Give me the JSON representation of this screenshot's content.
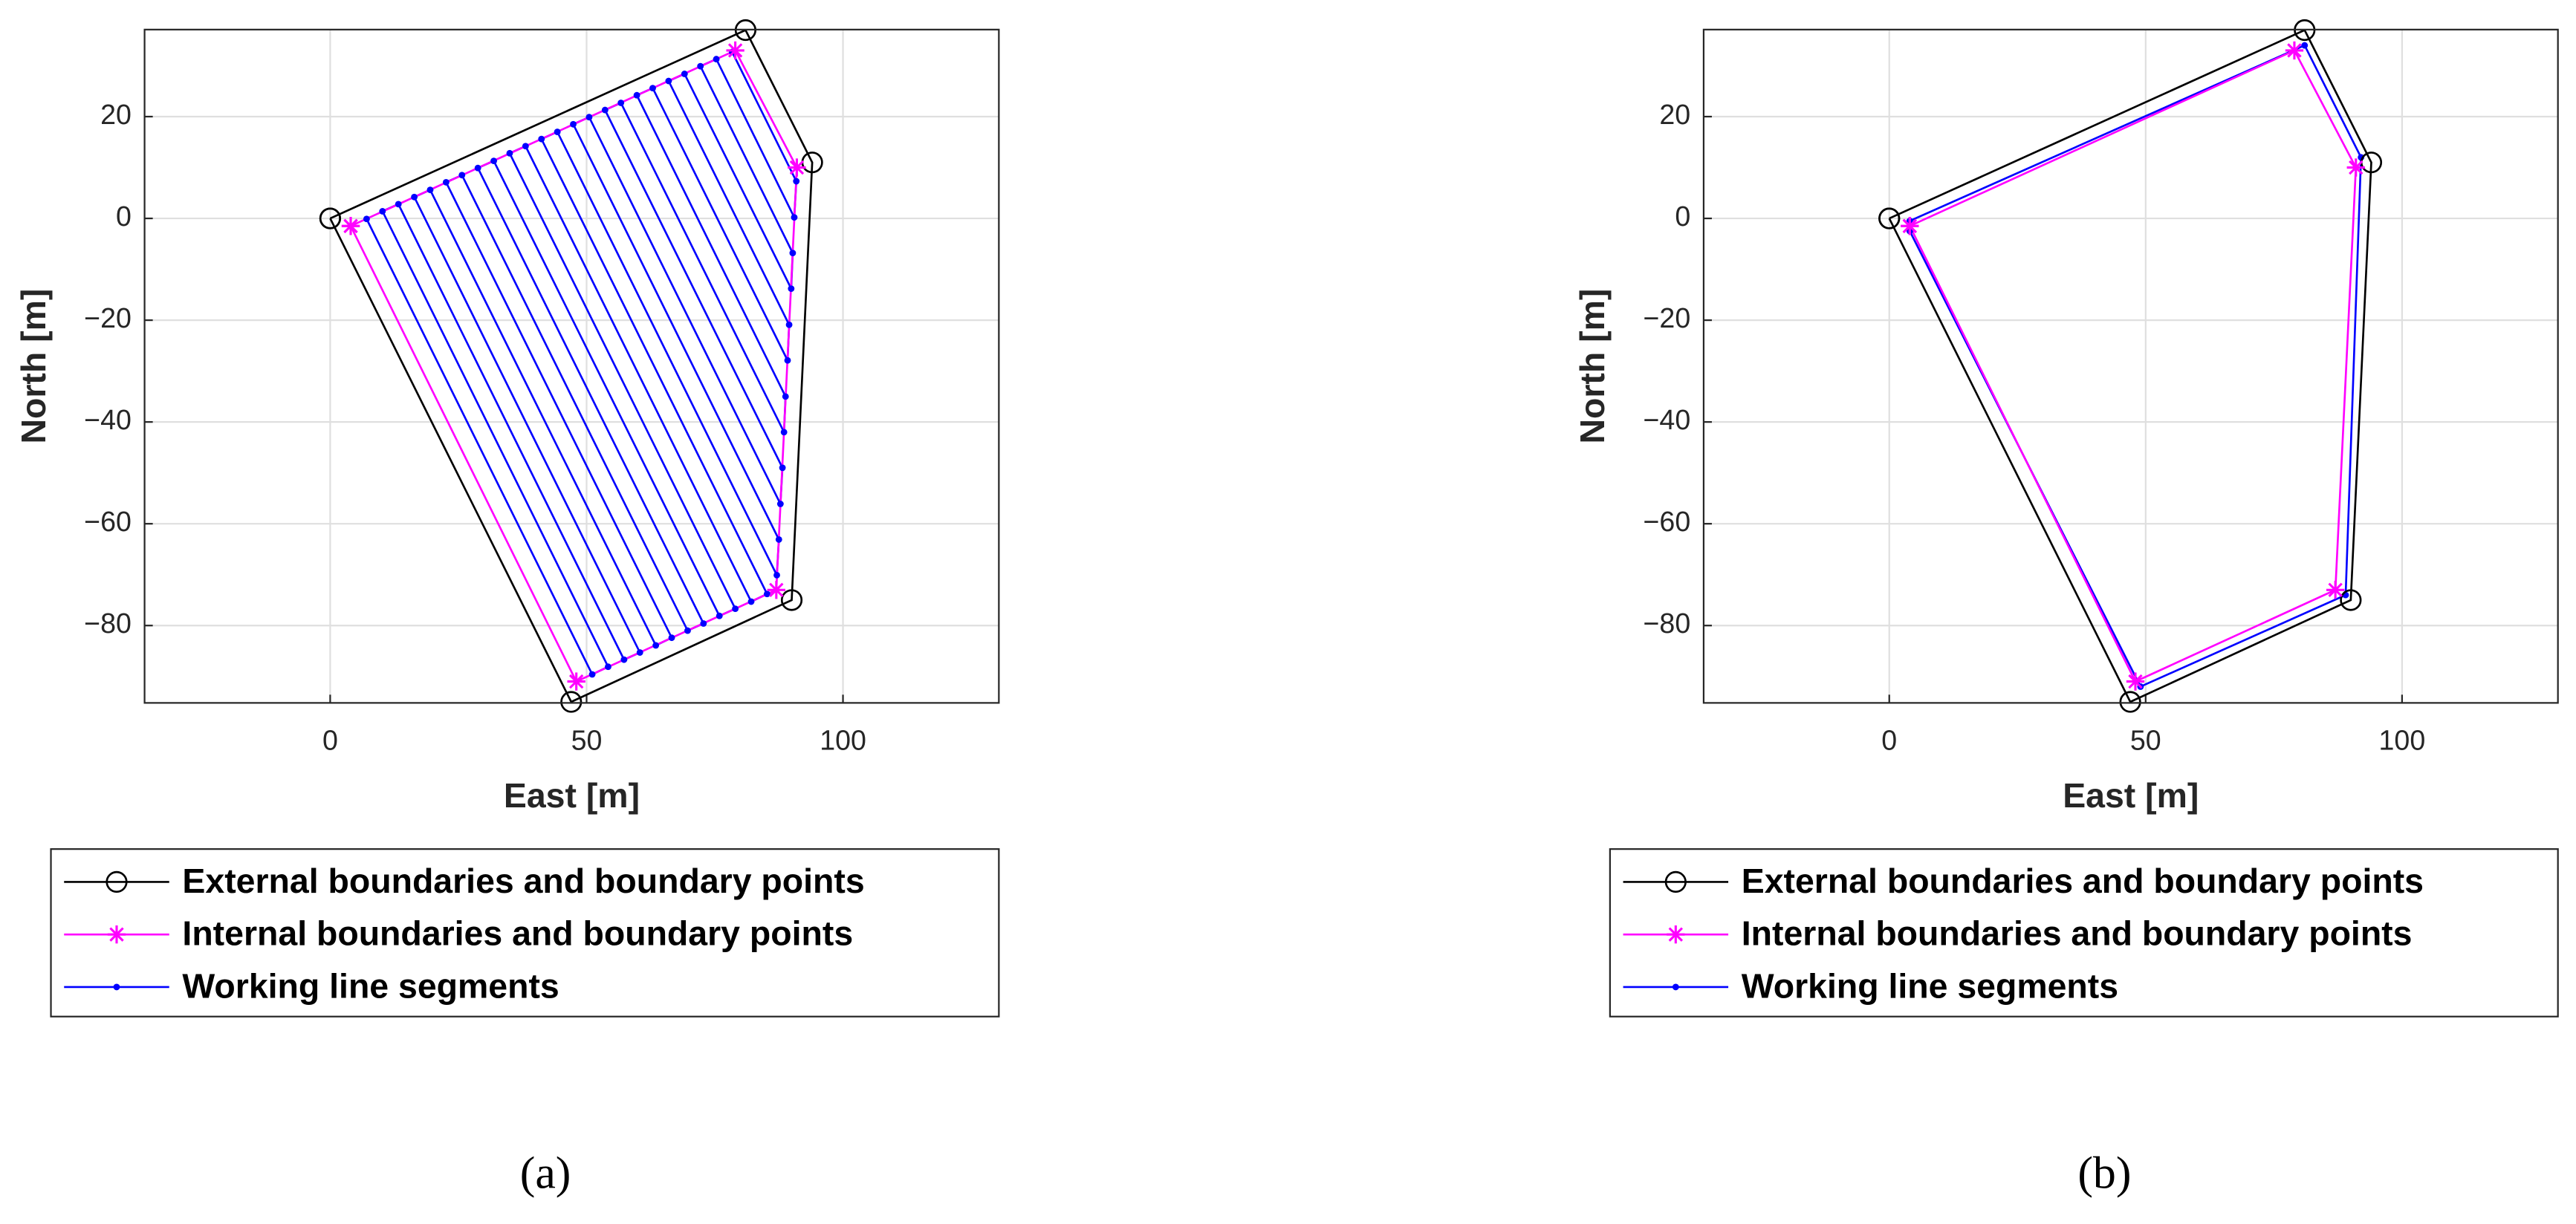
{
  "chart_data": [
    {
      "type": "line",
      "caption": "(a)",
      "xlabel": "East [m]",
      "ylabel": "North [m]",
      "xlim": [
        -36.2,
        130.4
      ],
      "ylim": [
        -95.2,
        37.1
      ],
      "xticks": [
        0,
        50,
        100
      ],
      "yticks": [
        {
          "value": -80,
          "label": "−80"
        },
        {
          "value": -60,
          "label": "−60"
        },
        {
          "value": -40,
          "label": "−40"
        },
        {
          "value": -20,
          "label": "−20"
        },
        0,
        20
      ],
      "grid": true,
      "legend_position": "bottom",
      "series": [
        {
          "name": "External boundaries and boundary points",
          "color": "#000000",
          "marker": "circle",
          "x": [
            0,
            81,
            94,
            90,
            47,
            0
          ],
          "y": [
            0,
            37,
            11,
            -75,
            -95,
            0
          ]
        },
        {
          "name": "Internal boundaries and boundary points",
          "color": "#ff00ff",
          "marker": "asterisk",
          "x": [
            4,
            79,
            91,
            87,
            48,
            4
          ],
          "y": [
            -1.5,
            33,
            10,
            -73,
            -91,
            -1.5
          ]
        },
        {
          "name": "Working line segments",
          "color": "#0000ff",
          "marker": "dot",
          "x": [
            7.1,
            51.1,
            54.2,
            10.2,
            13.3,
            57.3,
            60.4,
            16.4,
            19.5,
            63.5,
            66.6,
            22.6,
            25.7,
            69.7,
            72.8,
            28.8,
            31.9,
            75.9,
            79.0,
            35.0,
            38.1,
            82.1,
            85.2,
            41.2,
            44.3,
            87.1,
            87.5,
            47.4,
            50.5,
            87.8,
            88.2,
            53.6,
            56.7,
            88.5,
            88.8,
            59.8,
            62.9,
            89.2,
            89.5,
            66.0,
            69.1,
            89.9,
            90.2,
            72.2,
            75.3,
            90.5,
            90.9,
            78.4
          ],
          "y": [
            -0.1,
            -89.6,
            -88.1,
            1.4,
            2.8,
            -86.7,
            -85.3,
            4.2,
            5.6,
            -83.9,
            -82.4,
            7.1,
            8.5,
            -81.0,
            -79.6,
            9.9,
            11.3,
            -78.1,
            -76.7,
            12.8,
            14.2,
            -75.3,
            -73.8,
            15.6,
            17.0,
            -70.1,
            -63.1,
            18.5,
            19.9,
            -56.1,
            -49.0,
            21.3,
            22.7,
            -42.0,
            -35.0,
            24.2,
            25.6,
            -27.9,
            -20.9,
            27.0,
            28.4,
            -13.8,
            -6.8,
            29.9,
            31.3,
            0.2,
            7.3,
            32.7
          ]
        }
      ]
    },
    {
      "type": "line",
      "caption": "(b)",
      "xlabel": "East [m]",
      "ylabel": "North [m]",
      "xlim": [
        -36.2,
        130.4
      ],
      "ylim": [
        -95.2,
        37.1
      ],
      "xticks": [
        0,
        50,
        100
      ],
      "yticks": [
        {
          "value": -80,
          "label": "−80"
        },
        {
          "value": -60,
          "label": "−60"
        },
        {
          "value": -40,
          "label": "−40"
        },
        {
          "value": -20,
          "label": "−20"
        },
        0,
        20
      ],
      "grid": true,
      "legend_position": "bottom",
      "series": [
        {
          "name": "External boundaries and boundary points",
          "color": "#000000",
          "marker": "circle",
          "x": [
            0,
            81,
            94,
            90,
            47,
            0
          ],
          "y": [
            0,
            37,
            11,
            -75,
            -95,
            0
          ]
        },
        {
          "name": "Internal boundaries and boundary points",
          "color": "#ff00ff",
          "marker": "asterisk",
          "x": [
            4,
            79,
            91,
            87,
            48,
            4
          ],
          "y": [
            -1.5,
            33,
            10,
            -73,
            -91,
            -1.5
          ]
        },
        {
          "name": "Working line segments",
          "color": "#0000ff",
          "marker": "dot",
          "x": [
            4,
            81,
            92,
            89,
            49,
            4
          ],
          "y": [
            -0.5,
            34,
            12,
            -74,
            -92,
            -2.5
          ]
        }
      ]
    }
  ]
}
